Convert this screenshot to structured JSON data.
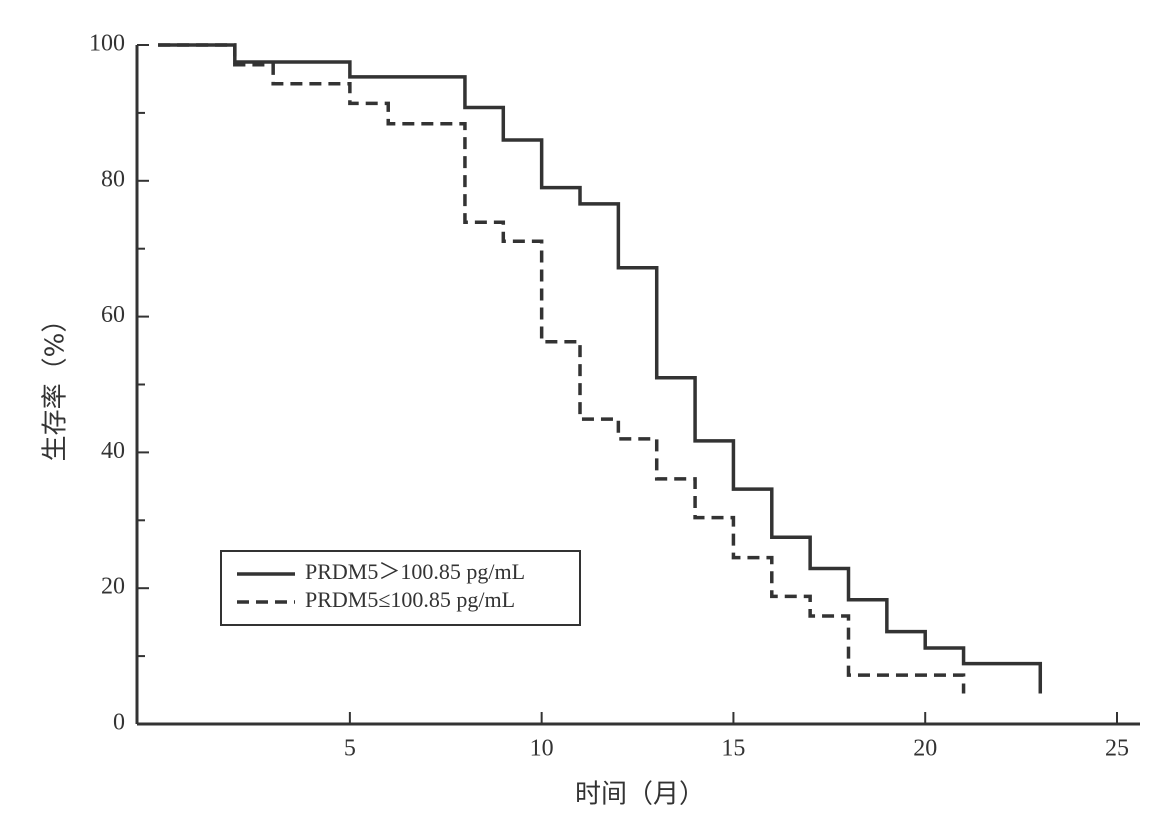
{
  "chart_data": {
    "type": "step",
    "xlabel": "时间（月）",
    "ylabel": "生存率（%）",
    "xlim": [
      -0.55,
      25.6
    ],
    "ylim": [
      0,
      100
    ],
    "xticks": [
      5,
      10,
      15,
      20,
      25
    ],
    "yticks": [
      0,
      20,
      40,
      60,
      80,
      100
    ],
    "yminor": [
      10,
      30,
      50,
      70,
      90
    ],
    "legend": "lower left",
    "series": [
      {
        "name": "PRDM5＞100.85 pg/mL",
        "color": "#333333",
        "dash": "solid",
        "x": [
          0,
          2,
          5,
          8,
          9,
          10,
          11,
          12,
          13,
          14,
          15,
          16,
          17,
          18,
          19,
          20,
          21,
          23
        ],
        "values": [
          100,
          97.5,
          95.3,
          90.8,
          86,
          79,
          76.6,
          67.2,
          51,
          41.7,
          34.6,
          27.5,
          22.9,
          18.3,
          13.6,
          11.2,
          8.9,
          4.5
        ]
      },
      {
        "name": "PRDM5≤100.85 pg/mL",
        "color": "#333333",
        "dash": "dashed",
        "x": [
          0,
          2,
          3,
          5,
          6,
          8,
          9,
          10,
          11,
          12,
          13,
          14,
          15,
          16,
          17,
          18,
          21
        ],
        "values": [
          100,
          97.1,
          94.3,
          91.4,
          88.4,
          73.9,
          71.1,
          56.3,
          44.9,
          42,
          36.1,
          30.4,
          24.5,
          18.8,
          15.9,
          7.2,
          4.5
        ]
      }
    ]
  }
}
